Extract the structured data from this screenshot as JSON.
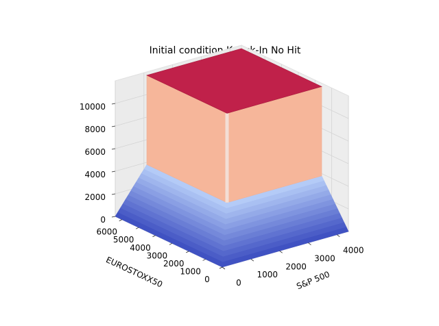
{
  "chart_data": {
    "type": "surface3d",
    "title": "Initial condition Knock-In No Hit",
    "xlabel": "S&P 500",
    "ylabel": "EUROSTOXX50",
    "zlabel": "",
    "x_ticks": [
      "0",
      "1000",
      "2000",
      "3000",
      "4000"
    ],
    "y_ticks": [
      "0",
      "1000",
      "2000",
      "3000",
      "4000",
      "5000",
      "6000"
    ],
    "z_ticks": [
      "0",
      "2000",
      "4000",
      "6000",
      "8000",
      "10000"
    ],
    "xlim": [
      0,
      4400
    ],
    "ylim": [
      0,
      6400
    ],
    "zlim": [
      0,
      12000
    ],
    "plateau": {
      "x_range": [
        1100,
        4400
      ],
      "y_range": [
        1600,
        6400
      ],
      "z_value": 11700
    },
    "knock_in_height": 3800,
    "colormap": "coolwarm",
    "colors": {
      "base_low": "#3b4cc0",
      "base_high": "#b9d0f9",
      "wall": "#f6b69a",
      "top": "#c0214a"
    }
  }
}
